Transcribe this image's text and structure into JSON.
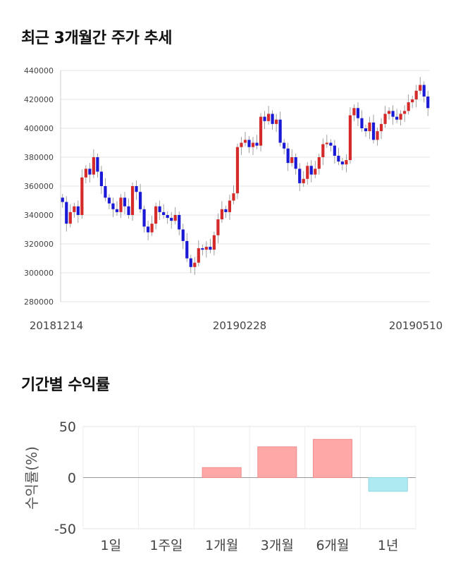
{
  "title1": "최근 3개월간 주가 추세",
  "title2": "기간별 수익률",
  "colors": {
    "up": "#d42a2a",
    "down": "#1a1ad6",
    "pos": "#ffa8a8",
    "neg": "#aeeaf2",
    "grid": "#e6e6e6"
  },
  "chart_data": [
    {
      "type": "candlestick",
      "title": "최근 3개월간 주가 추세",
      "ylim": [
        280000,
        440000
      ],
      "yticks": [
        "440000",
        "420000",
        "400000",
        "380000",
        "360000",
        "340000",
        "320000",
        "300000",
        "280000"
      ],
      "xticks": [
        "20181214",
        "20190228",
        "20190510"
      ],
      "close": [
        349000,
        334000,
        342000,
        346000,
        340000,
        366000,
        372000,
        368000,
        380000,
        370000,
        360000,
        352000,
        348000,
        344000,
        342000,
        352000,
        346000,
        340000,
        360000,
        356000,
        344000,
        332000,
        328000,
        334000,
        346000,
        342000,
        340000,
        338000,
        336000,
        340000,
        330000,
        322000,
        310000,
        304000,
        307000,
        317000,
        316000,
        318000,
        316000,
        326000,
        337000,
        344000,
        342000,
        350000,
        355000,
        387000,
        390000,
        392000,
        387000,
        390000,
        388000,
        408000,
        405000,
        410000,
        403000,
        406000,
        390000,
        386000,
        376000,
        380000,
        372000,
        362000,
        365000,
        374000,
        368000,
        372000,
        380000,
        389000,
        390000,
        388000,
        381000,
        377000,
        375000,
        378000,
        409000,
        414000,
        407000,
        400000,
        398000,
        404000,
        392000,
        398000,
        403000,
        410000,
        412000,
        408000,
        406000,
        410000,
        412000,
        418000,
        420000,
        426000,
        430000,
        422000,
        414000
      ],
      "ohlc_note": "daily candles; red = up, blue = down"
    },
    {
      "type": "bar",
      "title": "기간별 수익률",
      "ylabel": "수익률(%)",
      "categories": [
        "1일",
        "1주일",
        "1개월",
        "3개월",
        "6개월",
        "1년"
      ],
      "values": [
        0,
        0,
        9.8,
        30.1,
        37.4,
        -13.4
      ],
      "ylim": [
        -50,
        50
      ],
      "yticks": [
        "50",
        "0",
        "-50"
      ]
    }
  ]
}
